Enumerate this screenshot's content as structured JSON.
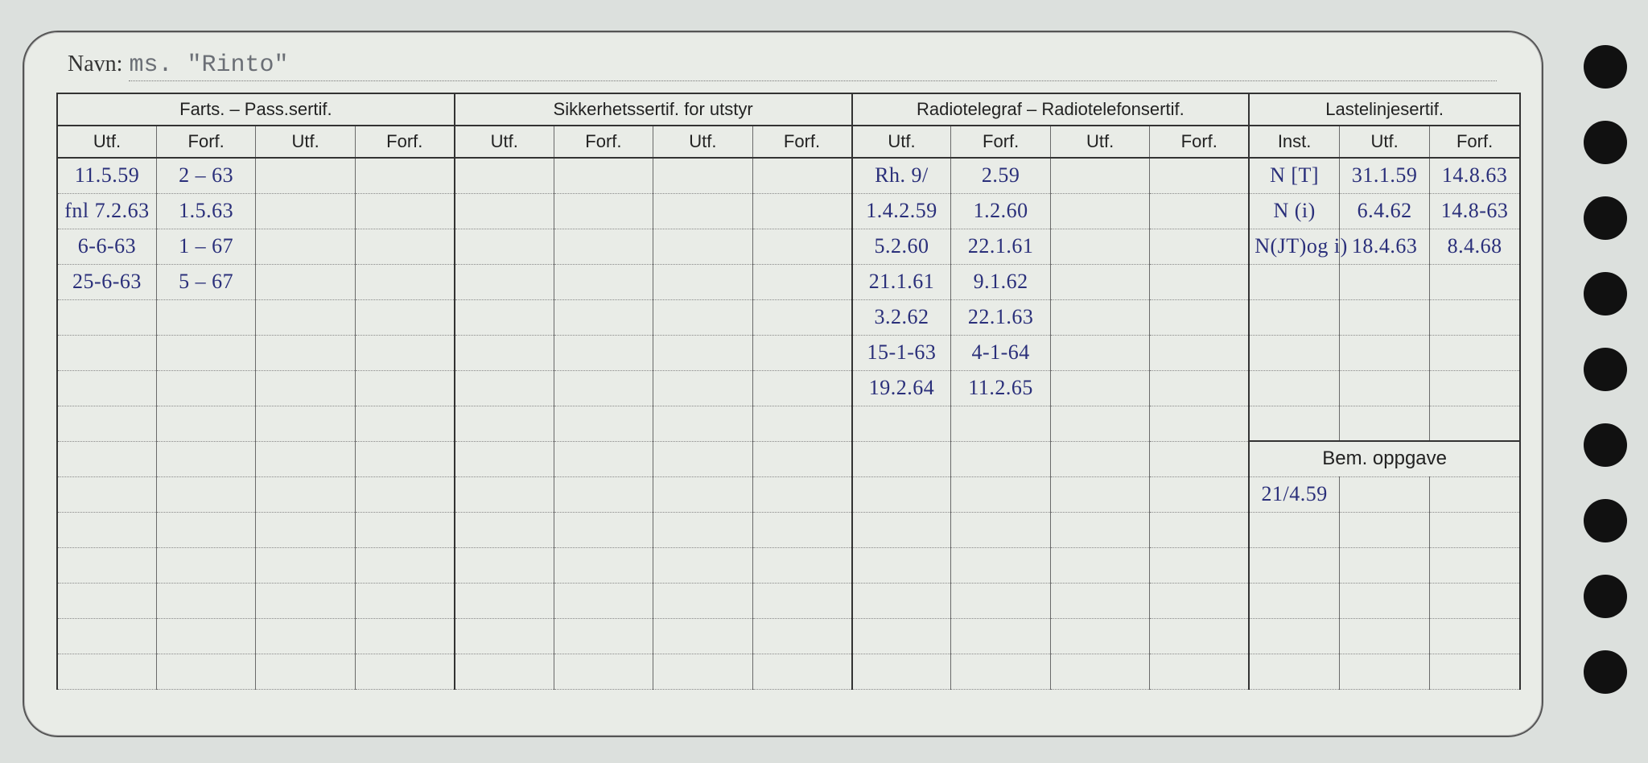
{
  "background_color": "#dce0dd",
  "card_color": "#e9ece7",
  "ink_color": "#2a2f7a",
  "print_color": "#222222",
  "navn_label": "Navn:",
  "navn_value": "ms.  \"Rinto\"",
  "sections": {
    "farts": {
      "title": "Farts. – Pass.sertif.",
      "cols": [
        "Utf.",
        "Forf.",
        "Utf.",
        "Forf."
      ]
    },
    "sikker": {
      "title": "Sikkerhetssertif. for utstyr",
      "cols": [
        "Utf.",
        "Forf.",
        "Utf.",
        "Forf."
      ]
    },
    "radio": {
      "title": "Radiotelegraf – Radiotelefonsertif.",
      "cols": [
        "Utf.",
        "Forf.",
        "Utf.",
        "Forf."
      ]
    },
    "laste": {
      "title": "Lastelinjesertif.",
      "cols": [
        "Inst.",
        "Utf.",
        "Forf."
      ]
    }
  },
  "bem_label": "Bem. oppgave",
  "rows": [
    {
      "farts": [
        "11.5.59",
        "2 – 63",
        "",
        ""
      ],
      "sikker": [
        "",
        "",
        "",
        ""
      ],
      "radio": [
        "Rh. 9/",
        "2.59",
        "",
        ""
      ],
      "laste": [
        "N [T]",
        "31.1.59",
        "14.8.63"
      ]
    },
    {
      "farts": [
        "fnl 7.2.63",
        "1.5.63",
        "",
        ""
      ],
      "sikker": [
        "",
        "",
        "",
        ""
      ],
      "radio": [
        "1.4.2.59",
        "1.2.60",
        "",
        ""
      ],
      "laste": [
        "N (i)",
        "6.4.62",
        "14.8-63"
      ]
    },
    {
      "farts": [
        "6-6-63",
        "1 – 67",
        "",
        ""
      ],
      "sikker": [
        "",
        "",
        "",
        ""
      ],
      "radio": [
        "5.2.60",
        "22.1.61",
        "",
        ""
      ],
      "laste": [
        "N(JT)og i)",
        "18.4.63",
        "8.4.68"
      ]
    },
    {
      "farts": [
        "25-6-63",
        "5 – 67",
        "",
        ""
      ],
      "sikker": [
        "",
        "",
        "",
        ""
      ],
      "radio": [
        "21.1.61",
        "9.1.62",
        "",
        ""
      ],
      "laste": [
        "",
        "",
        ""
      ]
    },
    {
      "farts": [
        "",
        "",
        "",
        ""
      ],
      "sikker": [
        "",
        "",
        "",
        ""
      ],
      "radio": [
        "3.2.62",
        "22.1.63",
        "",
        ""
      ],
      "laste": [
        "",
        "",
        ""
      ]
    },
    {
      "farts": [
        "",
        "",
        "",
        ""
      ],
      "sikker": [
        "",
        "",
        "",
        ""
      ],
      "radio": [
        "15-1-63",
        "4-1-64",
        "",
        ""
      ],
      "laste": [
        "",
        "",
        ""
      ]
    },
    {
      "farts": [
        "",
        "",
        "",
        ""
      ],
      "sikker": [
        "",
        "",
        "",
        ""
      ],
      "radio": [
        "19.2.64",
        "11.2.65",
        "",
        ""
      ],
      "laste": [
        "",
        "",
        ""
      ]
    },
    {
      "farts": [
        "",
        "",
        "",
        ""
      ],
      "sikker": [
        "",
        "",
        "",
        ""
      ],
      "radio": [
        "",
        "",
        "",
        ""
      ],
      "laste": [
        "",
        "",
        ""
      ]
    }
  ],
  "bem_rows": [
    {
      "left12": [
        "",
        "",
        "",
        "",
        "",
        "",
        "",
        "",
        "",
        "",
        "",
        ""
      ],
      "right3": [
        "21/4.59",
        "",
        ""
      ]
    },
    {
      "left12": [
        "",
        "",
        "",
        "",
        "",
        "",
        "",
        "",
        "",
        "",
        "",
        ""
      ],
      "right3": [
        "",
        "",
        ""
      ]
    },
    {
      "left12": [
        "",
        "",
        "",
        "",
        "",
        "",
        "",
        "",
        "",
        "",
        "",
        ""
      ],
      "right3": [
        "",
        "",
        ""
      ]
    },
    {
      "left12": [
        "",
        "",
        "",
        "",
        "",
        "",
        "",
        "",
        "",
        "",
        "",
        ""
      ],
      "right3": [
        "",
        "",
        ""
      ]
    },
    {
      "left12": [
        "",
        "",
        "",
        "",
        "",
        "",
        "",
        "",
        "",
        "",
        "",
        ""
      ],
      "right3": [
        "",
        "",
        ""
      ]
    },
    {
      "left12": [
        "",
        "",
        "",
        "",
        "",
        "",
        "",
        "",
        "",
        "",
        "",
        ""
      ],
      "right3": [
        "",
        "",
        ""
      ]
    }
  ]
}
